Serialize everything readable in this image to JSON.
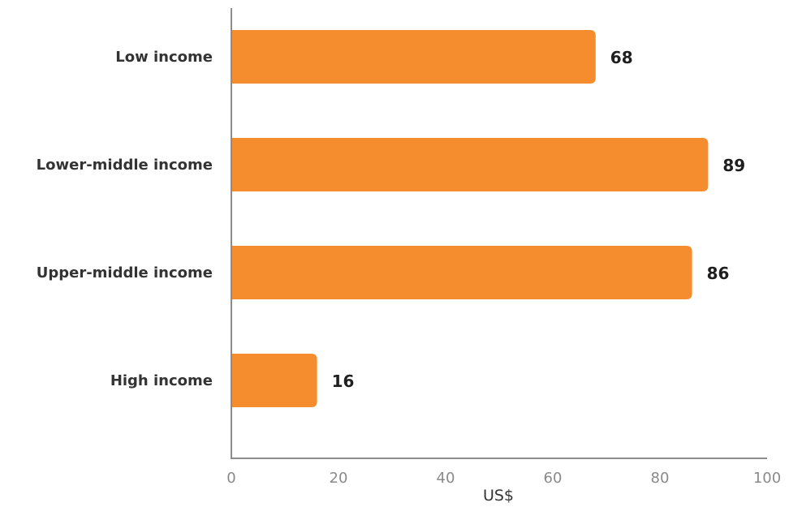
{
  "chart_data": {
    "type": "bar",
    "orientation": "horizontal",
    "categories": [
      "Low income",
      "Lower-middle income",
      "Upper-middle income",
      "High income"
    ],
    "values": [
      68,
      89,
      86,
      16
    ],
    "value_labels": [
      "68",
      "89",
      "86",
      "16"
    ],
    "xlabel": "US$",
    "xlim": [
      0,
      100
    ],
    "xticks": [
      0,
      20,
      40,
      60,
      80,
      100
    ],
    "xtick_labels": [
      "0",
      "20",
      "40",
      "60",
      "80",
      "100"
    ],
    "grid": false,
    "legend": "none",
    "colors": {
      "bar": "#F58D2E",
      "axis": "#8c8c8c",
      "category_text": "#333333",
      "value_text": "#1f1f1f",
      "tick_text": "#8a8a8a"
    }
  }
}
